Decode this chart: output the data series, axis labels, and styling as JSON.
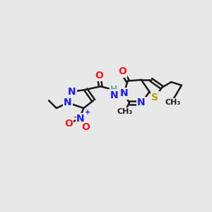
{
  "bg_color": "#e8e8e8",
  "bond_color": "#1a1a1a",
  "bond_width": 1.8,
  "atom_colors": {
    "N": "#1818ff",
    "O": "#ff1818",
    "S": "#b8a000",
    "H": "#5aacac",
    "C": "#1a1a1a"
  },
  "font_size_atom": 10,
  "font_size_small": 8
}
